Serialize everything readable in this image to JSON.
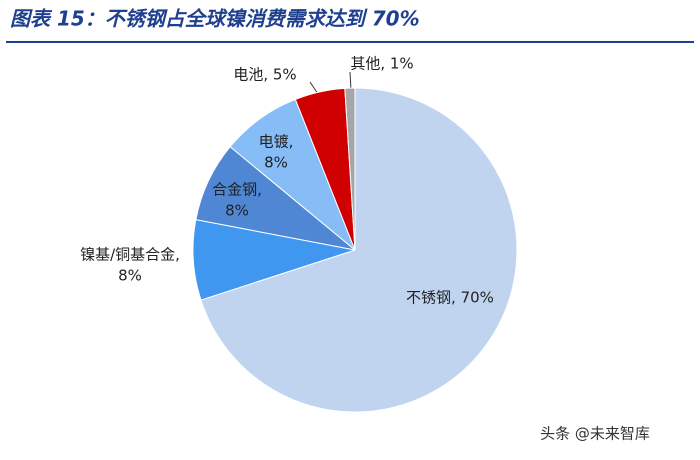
{
  "chart_data": {
    "type": "pie",
    "title": "图表 15：不锈钢占全球镍消费需求达到 70%",
    "categories": [
      "不锈钢",
      "镍基/铜基合金",
      "合金钢",
      "电镀",
      "电池",
      "其他"
    ],
    "values": [
      70,
      8,
      8,
      8,
      5,
      1
    ],
    "data_labels": [
      [
        "不锈钢, 70%"
      ],
      [
        "镍基/铜基合金,",
        "8%"
      ],
      [
        "合金钢,",
        "8%"
      ],
      [
        "电镀,",
        "8%"
      ],
      [
        "电池, 5%"
      ],
      [
        "其他, 1%"
      ]
    ],
    "colors": [
      "#c0d4f0",
      "#3f97f0",
      "#4f87d4",
      "#86bdf6",
      "#d00000",
      "#a6a6a6"
    ],
    "watermark": "头条 @未来智库"
  }
}
